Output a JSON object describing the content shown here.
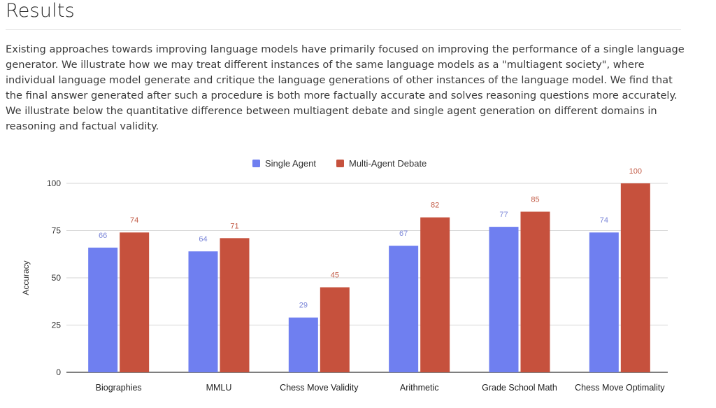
{
  "page": {
    "title": "Results",
    "intro": "Existing approaches towards improving language models have primarily focused on improving the performance of a single language generator. We illustrate how we may treat different instances of the same language models as a \"multiagent society\", where individual language model generate and critique the language generations of other instances of the language model. We find that the final answer generated after such a procedure is both more factually accurate and solves reasoning questions more accurately. We illustrate below the quantitative difference between multiagent debate and single agent generation on different domains in reasoning and factual validity."
  },
  "chart_data": {
    "type": "bar",
    "title": "",
    "xlabel": "",
    "ylabel": "Accuracy",
    "ylim": [
      0,
      100
    ],
    "yticks": [
      0,
      25,
      50,
      75,
      100
    ],
    "grid": true,
    "legend_position": "top-center",
    "categories": [
      "Biographies",
      "MMLU",
      "Chess Move Validity",
      "Arithmetic",
      "Grade School Math",
      "Chess Move Optimality"
    ],
    "series": [
      {
        "name": "Single Agent",
        "color": "#6f7ff0",
        "label_color": "#7b86d8",
        "values": [
          66,
          64,
          29,
          67,
          77,
          74
        ]
      },
      {
        "name": "Multi-Agent Debate",
        "color": "#c6513d",
        "label_color": "#c25a45",
        "values": [
          74,
          71,
          45,
          82,
          85,
          100
        ]
      }
    ]
  }
}
